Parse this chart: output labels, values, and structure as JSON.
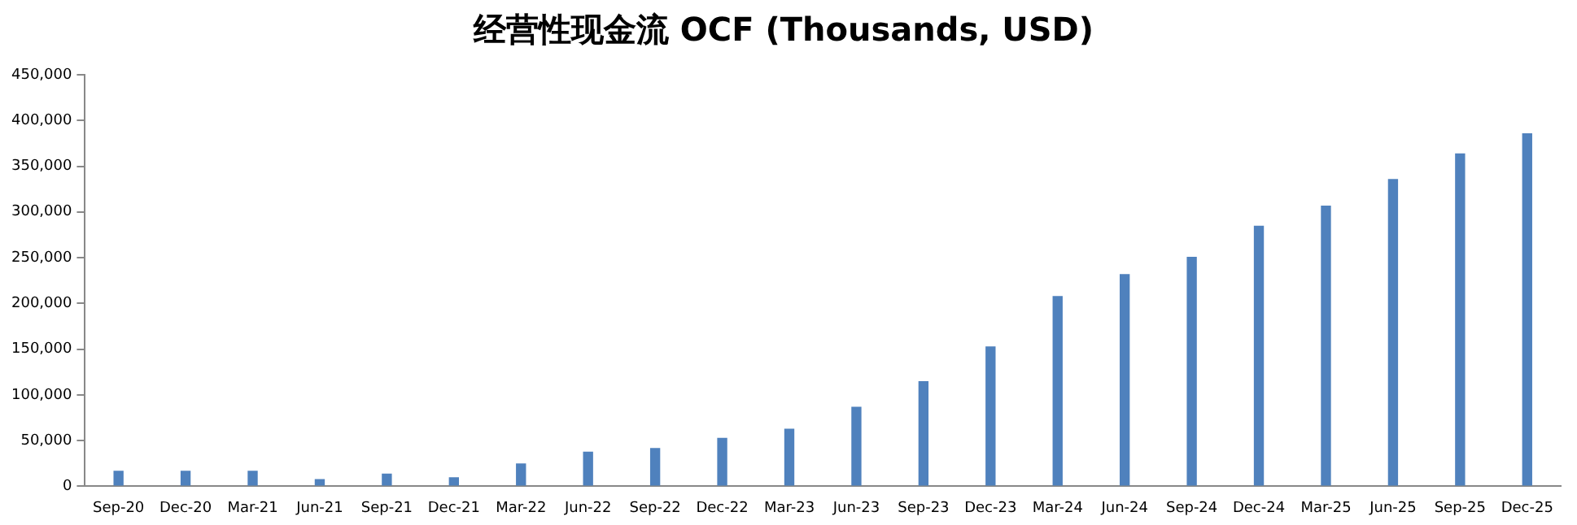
{
  "chart_data": {
    "type": "bar",
    "title": "经营性现金流 OCF (Thousands, USD)",
    "categories": [
      "Sep-20",
      "Dec-20",
      "Mar-21",
      "Jun-21",
      "Sep-21",
      "Dec-21",
      "Mar-22",
      "Jun-22",
      "Sep-22",
      "Dec-22",
      "Mar-23",
      "Jun-23",
      "Sep-23",
      "Dec-23",
      "Mar-24",
      "Jun-24",
      "Sep-24",
      "Dec-24",
      "Mar-25",
      "Jun-25",
      "Sep-25",
      "Dec-25"
    ],
    "values": [
      17000,
      17000,
      17000,
      8000,
      14000,
      10000,
      25000,
      38000,
      42000,
      53000,
      63000,
      87000,
      115000,
      153000,
      208000,
      232000,
      251000,
      285000,
      307000,
      336000,
      364000,
      386000
    ],
    "color": "#4f81bd",
    "ylim": [
      0,
      450000
    ],
    "yticks": [
      0,
      {
        "value": 50000,
        "label": "50,000"
      },
      {
        "value": 100000,
        "label": "100,000"
      },
      {
        "value": 150000,
        "label": "150,000"
      },
      {
        "value": 200000,
        "label": "200,000"
      },
      {
        "value": 250000,
        "label": "250,000"
      },
      {
        "value": 300000,
        "label": "300,000"
      },
      {
        "value": 350000,
        "label": "350,000"
      },
      {
        "value": 400000,
        "label": "400,000"
      },
      {
        "value": 450000,
        "label": "450,000"
      }
    ],
    "grid": false,
    "legend": false
  }
}
